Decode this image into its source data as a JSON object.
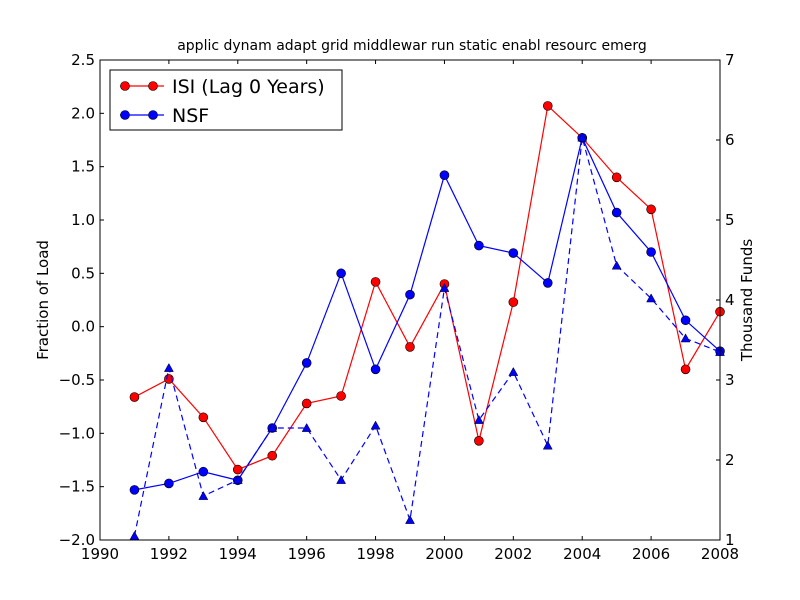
{
  "chart_data": {
    "type": "line",
    "title": "applic dynam adapt grid middlewar run static enabl resourc emerg",
    "xlabel": "",
    "ylabel": "Fraction of Load",
    "y2label": "Thousand Funds",
    "xlim": [
      1990,
      2008
    ],
    "ylim": [
      -2.0,
      2.5
    ],
    "y2lim": [
      1,
      7
    ],
    "xticks": [
      "1990",
      "1992",
      "1994",
      "1996",
      "1998",
      "2000",
      "2002",
      "2004",
      "2006",
      "2008"
    ],
    "yticks": [
      "−2.0",
      "−1.5",
      "−1.0",
      "−0.5",
      "0.0",
      "0.5",
      "1.0",
      "1.5",
      "2.0",
      "2.5"
    ],
    "y2ticks": [
      "1",
      "2",
      "3",
      "4",
      "5",
      "6",
      "7"
    ],
    "legend_position": "top-left",
    "x": [
      1991,
      1992,
      1993,
      1994,
      1995,
      1996,
      1997,
      1998,
      1999,
      2000,
      2001,
      2002,
      2003,
      2004,
      2005,
      2006,
      2007,
      2008
    ],
    "series": [
      {
        "name": "ISI (Lag 0 Years)",
        "color": "#ff0000",
        "axis": "left",
        "marker": "circle",
        "style": "solid",
        "values": [
          -0.66,
          -0.49,
          -0.85,
          -1.34,
          -1.21,
          -0.72,
          -0.65,
          0.42,
          -0.19,
          0.4,
          -1.07,
          0.23,
          2.07,
          1.77,
          1.4,
          1.1,
          -0.4,
          0.14
        ]
      },
      {
        "name": "NSF",
        "color": "#0000ff",
        "axis": "left",
        "marker": "circle",
        "style": "solid",
        "values": [
          -1.53,
          -1.47,
          -1.36,
          -1.44,
          -0.95,
          -0.34,
          0.5,
          -0.4,
          0.3,
          1.42,
          0.76,
          0.69,
          0.41,
          1.77,
          1.07,
          0.7,
          0.06,
          -0.23
        ]
      },
      {
        "name": "Thousand Funds",
        "color": "#0000ff",
        "axis": "right",
        "marker": "triangle",
        "style": "dashed",
        "in_legend": false,
        "values": [
          1.05,
          3.15,
          1.55,
          1.75,
          2.4,
          2.4,
          1.75,
          2.43,
          1.25,
          4.15,
          2.5,
          3.1,
          2.18,
          6.03,
          4.43,
          4.02,
          3.52,
          3.35
        ]
      }
    ]
  }
}
